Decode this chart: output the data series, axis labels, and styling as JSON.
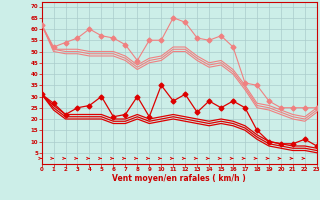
{
  "x": [
    0,
    1,
    2,
    3,
    4,
    5,
    6,
    7,
    8,
    9,
    10,
    11,
    12,
    13,
    14,
    15,
    16,
    17,
    18,
    19,
    20,
    21,
    22,
    23
  ],
  "line_light_zigzag": [
    62,
    52,
    54,
    56,
    60,
    57,
    56,
    53,
    46,
    55,
    55,
    65,
    63,
    56,
    55,
    57,
    52,
    36,
    35,
    28,
    25,
    25,
    25,
    25
  ],
  "line_light_upper": [
    62,
    51,
    51,
    51,
    50,
    50,
    50,
    48,
    44,
    47,
    48,
    52,
    52,
    48,
    45,
    46,
    42,
    35,
    27,
    26,
    24,
    22,
    21,
    25
  ],
  "line_light_lower1": [
    62,
    51,
    50,
    50,
    49,
    49,
    49,
    47,
    43,
    46,
    47,
    51,
    51,
    47,
    44,
    45,
    41,
    34,
    26,
    25,
    23,
    21,
    20,
    24
  ],
  "line_light_lower2": [
    62,
    50,
    49,
    49,
    48,
    48,
    48,
    46,
    42,
    45,
    46,
    50,
    50,
    46,
    43,
    44,
    40,
    33,
    25,
    24,
    22,
    20,
    19,
    23
  ],
  "line_dark_zigzag": [
    31,
    27,
    22,
    25,
    26,
    30,
    21,
    22,
    30,
    21,
    35,
    28,
    31,
    23,
    28,
    25,
    28,
    25,
    15,
    10,
    9,
    9,
    11,
    8
  ],
  "line_dark_upper": [
    31,
    26,
    22,
    22,
    22,
    22,
    20,
    20,
    22,
    20,
    21,
    22,
    21,
    20,
    19,
    20,
    19,
    17,
    13,
    10,
    9,
    8,
    8,
    7
  ],
  "line_dark_lower1": [
    31,
    25,
    21,
    21,
    21,
    21,
    19,
    19,
    21,
    19,
    20,
    21,
    20,
    19,
    18,
    19,
    18,
    16,
    12,
    9,
    8,
    7,
    7,
    6
  ],
  "line_dark_lower2": [
    31,
    24,
    20,
    20,
    20,
    20,
    18,
    18,
    20,
    18,
    19,
    20,
    19,
    18,
    17,
    18,
    17,
    15,
    11,
    8,
    7,
    6,
    6,
    5
  ],
  "light_color": "#f08080",
  "dark_color": "#dd0000",
  "bg_color": "#cceee8",
  "grid_color": "#aacccc",
  "xlabel": "Vent moyen/en rafales ( km/h )",
  "ylim": [
    0,
    72
  ],
  "yticks": [
    5,
    10,
    15,
    20,
    25,
    30,
    35,
    40,
    45,
    50,
    55,
    60,
    65,
    70
  ],
  "xlim": [
    0,
    23
  ]
}
